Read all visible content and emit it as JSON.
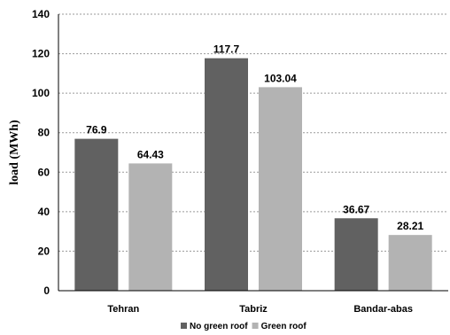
{
  "chart_data": {
    "type": "bar",
    "categories": [
      "Tehran",
      "Tabriz",
      "Bandar-abas"
    ],
    "series": [
      {
        "name": "No green roof",
        "values": [
          76.9,
          117.7,
          36.67
        ],
        "labels": [
          "76.9",
          "117.7",
          "36.67"
        ],
        "color": "#616161"
      },
      {
        "name": "Green roof",
        "values": [
          64.43,
          103.04,
          28.21
        ],
        "labels": [
          "64.43",
          "103.04",
          "28.21"
        ],
        "color": "#b3b3b3"
      }
    ],
    "title": "",
    "xlabel": "",
    "ylabel": "load (MWh)",
    "ylim": [
      0,
      140
    ],
    "yticks": [
      0,
      20,
      40,
      60,
      80,
      100,
      120,
      140
    ],
    "grid": "horizontal dashed",
    "legend": "bottom"
  }
}
